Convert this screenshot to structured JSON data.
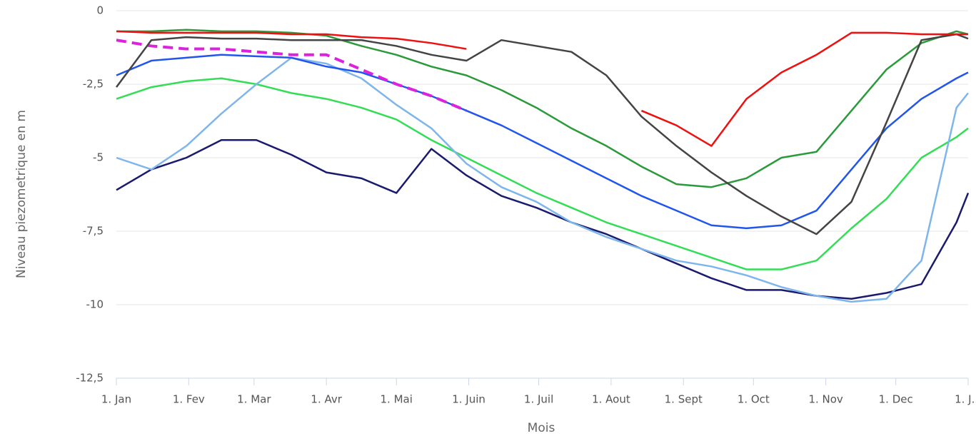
{
  "chart_data": {
    "type": "line",
    "y_label": "Niveau piezometrique en m",
    "x_label": "Mois",
    "x": [
      0,
      15,
      30,
      45,
      60,
      75,
      90,
      105,
      120,
      135,
      150,
      165,
      180,
      195,
      210,
      225,
      240,
      255,
      270,
      285,
      300,
      315,
      330,
      345,
      360,
      365
    ],
    "xlim": [
      0,
      365
    ],
    "xticks": [
      {
        "value": 0,
        "label": "1. Jan"
      },
      {
        "value": 31,
        "label": "1. Fev"
      },
      {
        "value": 59,
        "label": "1. Mar"
      },
      {
        "value": 90,
        "label": "1. Avr"
      },
      {
        "value": 120,
        "label": "1. Mai"
      },
      {
        "value": 151,
        "label": "1. Juin"
      },
      {
        "value": 181,
        "label": "1. Juil"
      },
      {
        "value": 212,
        "label": "1. Aout"
      },
      {
        "value": 243,
        "label": "1. Sept"
      },
      {
        "value": 273,
        "label": "1. Oct"
      },
      {
        "value": 304,
        "label": "1. Nov"
      },
      {
        "value": 334,
        "label": "1. Dec"
      },
      {
        "value": 365,
        "label": "1. J..."
      }
    ],
    "ylim": [
      -12.5,
      0
    ],
    "yticks": [
      {
        "value": -12.5,
        "label": "-12,5"
      },
      -10,
      {
        "value": -7.5,
        "label": "-7,5"
      },
      -5,
      {
        "value": -2.5,
        "label": "-2,5"
      },
      0
    ],
    "grid": true,
    "series": [
      {
        "color": "#33dd55",
        "values": [
          -3.0,
          -2.6,
          -2.4,
          -2.3,
          -2.5,
          -2.8,
          -3.0,
          -3.3,
          -3.7,
          -4.4,
          -5.0,
          -5.6,
          -6.2,
          -6.7,
          -7.2,
          -7.6,
          -8.0,
          -8.4,
          -8.8,
          -8.8,
          -8.5,
          -7.4,
          -6.4,
          -5.0,
          -4.3,
          -4.0
        ]
      },
      {
        "color": "#2a9a3a",
        "values": [
          -0.7,
          -0.7,
          -0.65,
          -0.7,
          -0.7,
          -0.75,
          -0.85,
          -1.2,
          -1.5,
          -1.9,
          -2.2,
          -2.7,
          -3.3,
          -4.0,
          -4.6,
          -5.3,
          -5.9,
          -6.0,
          -5.7,
          -5.0,
          -4.8,
          -3.4,
          -2.0,
          -1.1,
          -0.7,
          -0.8
        ]
      },
      {
        "color": "#1a1a6e",
        "values": [
          -6.1,
          -5.4,
          -5.0,
          -4.4,
          -4.4,
          -4.9,
          -5.5,
          -5.7,
          -6.2,
          -4.7,
          -5.6,
          -6.3,
          -6.7,
          -7.2,
          -7.6,
          -8.1,
          -8.6,
          -9.1,
          -9.5,
          -9.5,
          -9.7,
          -9.8,
          -9.6,
          -9.3,
          -7.2,
          -6.2
        ]
      },
      {
        "color": "#7eb6ec",
        "values": [
          -5.0,
          -5.4,
          -4.6,
          -3.5,
          -2.5,
          -1.6,
          -1.8,
          -2.3,
          -3.2,
          -4.0,
          -5.2,
          -6.0,
          -6.5,
          -7.2,
          -7.7,
          -8.1,
          -8.5,
          -8.7,
          -9.0,
          -9.4,
          -9.7,
          -9.9,
          -9.8,
          -8.5,
          -3.3,
          -2.8
        ]
      },
      {
        "color": "#2255ee",
        "values": [
          -2.2,
          -1.7,
          -1.6,
          -1.5,
          -1.55,
          -1.6,
          -1.9,
          -2.1,
          -2.5,
          -2.9,
          -3.4,
          -3.9,
          -4.5,
          -5.1,
          -5.7,
          -6.3,
          -6.8,
          -7.3,
          -7.4,
          -7.3,
          -6.8,
          -5.4,
          -4.0,
          -3.0,
          -2.3,
          -2.1
        ]
      },
      {
        "color": "#dd22dd",
        "style": "dashed",
        "values": [
          -1.0,
          -1.2,
          -1.3,
          -1.3,
          -1.4,
          -1.5,
          -1.5,
          -2.0,
          -2.5,
          -2.9,
          -3.4,
          null,
          null,
          null,
          null,
          null,
          null,
          null,
          null,
          null,
          null,
          null,
          null,
          null,
          null,
          null
        ]
      },
      {
        "color": "#444444",
        "values": [
          -2.6,
          -1.0,
          -0.9,
          -0.95,
          -0.95,
          -1.0,
          -1.0,
          -1.0,
          -1.2,
          -1.5,
          -1.7,
          -1.0,
          -1.2,
          -1.4,
          -2.2,
          -3.6,
          -4.6,
          -5.5,
          -6.3,
          -7.0,
          -7.6,
          -6.5,
          -3.8,
          -1.0,
          -0.8,
          -0.95
        ]
      },
      {
        "color": "#ee1111",
        "values": [
          -0.7,
          -0.75,
          -0.75,
          -0.75,
          -0.75,
          -0.8,
          -0.8,
          -0.9,
          -0.95,
          -1.1,
          -1.3,
          null,
          null,
          null,
          null,
          -3.4,
          -3.9,
          -4.6,
          -3.0,
          -2.1,
          -1.5,
          -0.75,
          -0.75,
          -0.8,
          -0.8,
          -0.8
        ]
      }
    ]
  }
}
